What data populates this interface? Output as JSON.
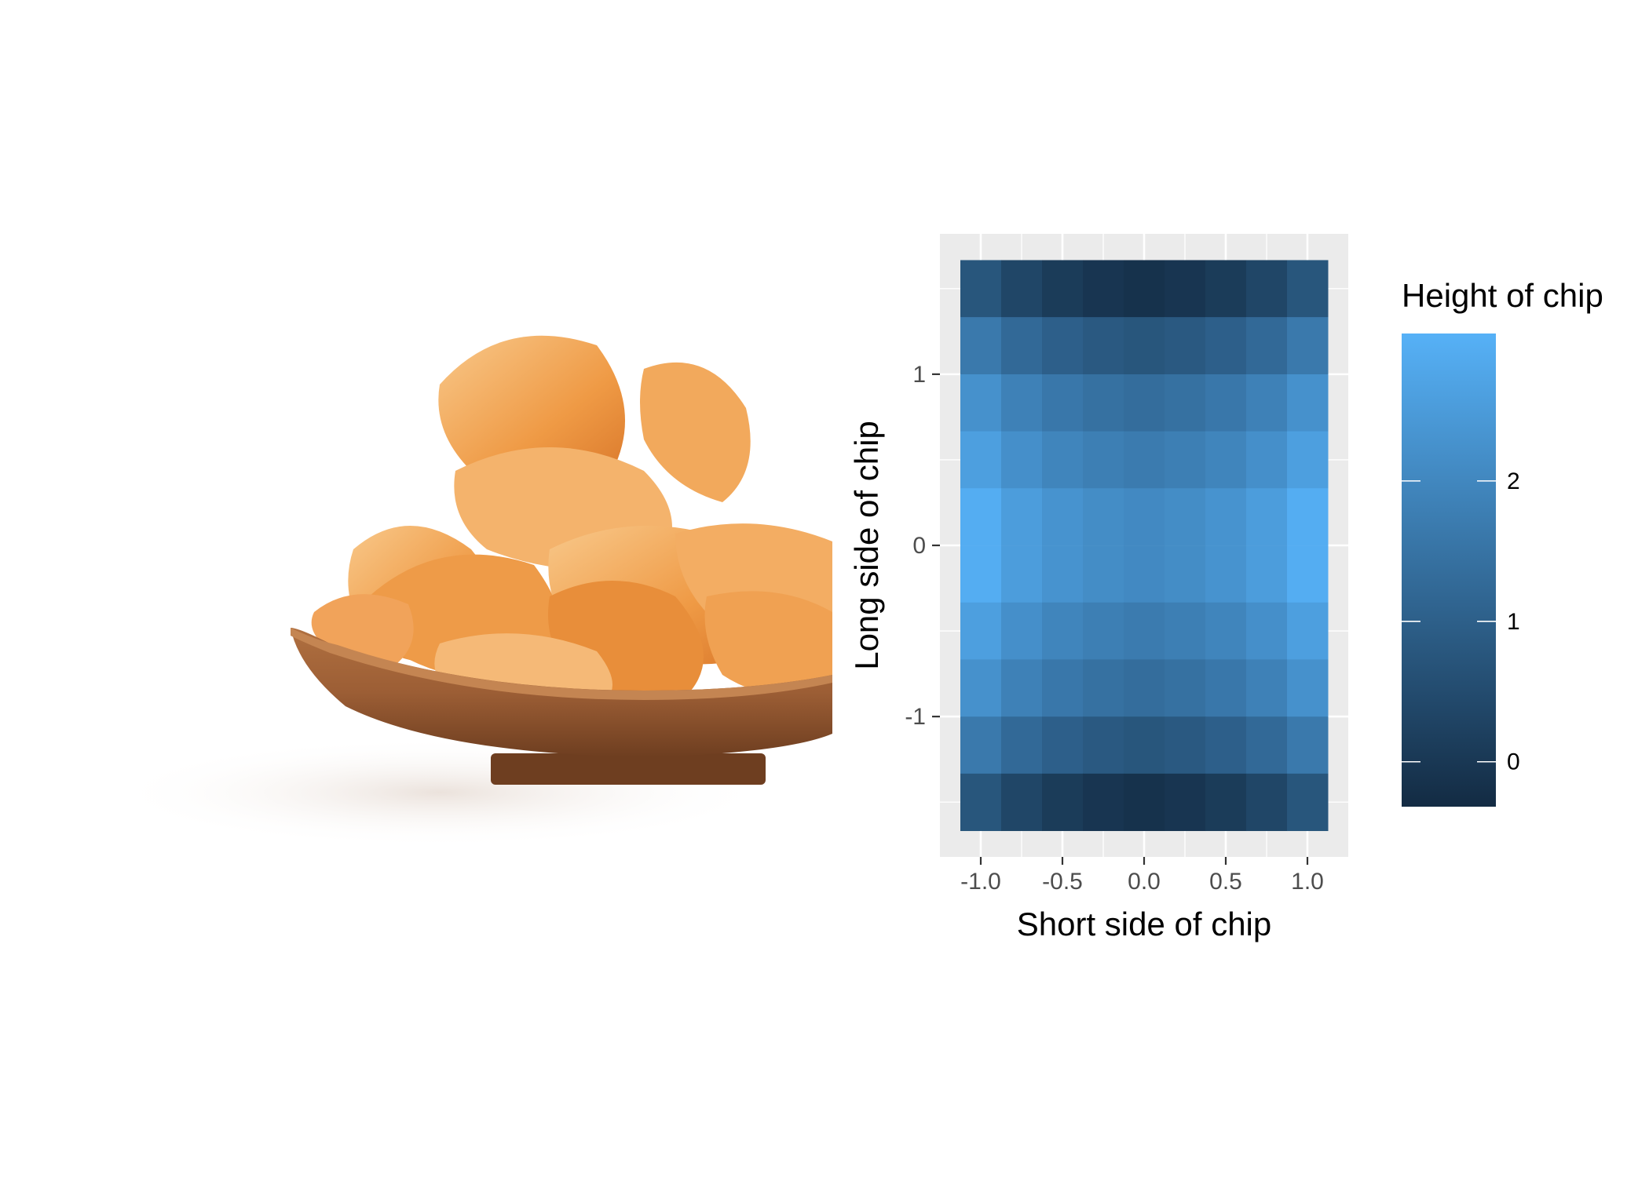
{
  "photo": {
    "subject": "potato-chips-in-wooden-bowl",
    "colors": {
      "chip_light": "#f6b873",
      "chip_mid": "#ef9a45",
      "chip_dark": "#d9772a",
      "bowl": "#9c5e35",
      "bowl_dark": "#6e3e20"
    }
  },
  "chart_data": {
    "type": "heatmap",
    "xlabel": "Short side of chip",
    "ylabel": "Long side of chip",
    "legend_title": "Height of chip",
    "x": [
      -1.0,
      -0.75,
      -0.5,
      -0.25,
      0.0,
      0.25,
      0.5,
      0.75,
      1.0
    ],
    "y": [
      1.5,
      1.167,
      0.833,
      0.5,
      0.167,
      -0.167,
      -0.5,
      -0.833,
      -1.167,
      -1.5
    ],
    "z": [
      [
        0.75,
        0.35,
        0.1,
        -0.06,
        -0.15,
        -0.06,
        0.1,
        0.35,
        0.75
      ],
      [
        1.65,
        1.25,
        1.0,
        0.84,
        0.75,
        0.84,
        1.0,
        1.25,
        1.65
      ],
      [
        2.25,
        1.85,
        1.6,
        1.44,
        1.35,
        1.44,
        1.6,
        1.85,
        2.25
      ],
      [
        2.6,
        2.2,
        1.95,
        1.79,
        1.7,
        1.79,
        1.95,
        2.2,
        2.6
      ],
      [
        2.95,
        2.55,
        2.3,
        2.14,
        2.05,
        2.14,
        2.3,
        2.55,
        2.95
      ],
      [
        2.95,
        2.55,
        2.3,
        2.14,
        2.05,
        2.14,
        2.3,
        2.55,
        2.95
      ],
      [
        2.6,
        2.2,
        1.95,
        1.79,
        1.7,
        1.79,
        1.95,
        2.2,
        2.6
      ],
      [
        2.25,
        1.85,
        1.6,
        1.44,
        1.35,
        1.44,
        1.6,
        1.85,
        2.25
      ],
      [
        1.65,
        1.25,
        1.0,
        0.84,
        0.75,
        0.84,
        1.0,
        1.25,
        1.65
      ],
      [
        0.75,
        0.35,
        0.1,
        -0.06,
        -0.15,
        -0.06,
        0.1,
        0.35,
        0.75
      ]
    ],
    "x_ticks": [
      -1.0,
      -0.5,
      0.0,
      0.5,
      1.0
    ],
    "x_tick_labels": [
      "-1.0",
      "-0.5",
      "0.0",
      "0.5",
      "1.0"
    ],
    "y_ticks": [
      1,
      0,
      -1
    ],
    "y_tick_labels": [
      "1",
      "0",
      "-1"
    ],
    "xlim": [
      -1.25,
      1.25
    ],
    "ylim": [
      -1.82,
      1.82
    ],
    "legend_ticks": [
      2,
      1,
      0
    ],
    "legend_tick_labels": [
      "2",
      "1",
      "0"
    ],
    "zlim": [
      -0.32,
      3.05
    ],
    "color_low": "#132b43",
    "color_high": "#56b1f7",
    "panel_background": "#ebebeb",
    "gridline_color": "#ffffff",
    "legend_position": "right",
    "grid": true
  }
}
